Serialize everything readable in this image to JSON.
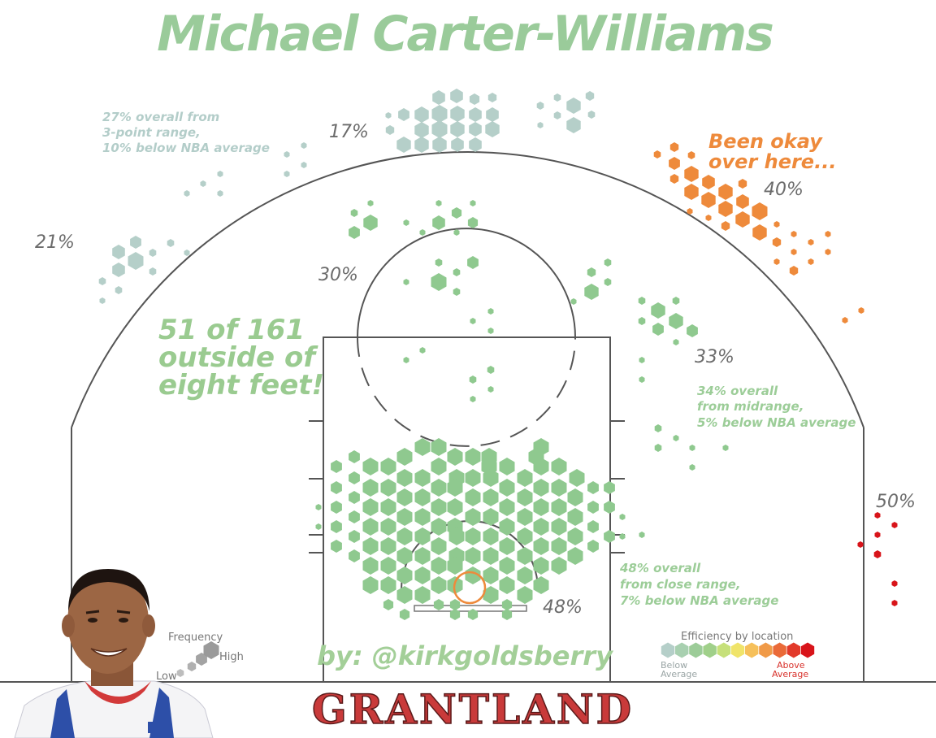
{
  "title": "Michael Carter-Williams",
  "byline": "by: @kirkgoldsberry",
  "logo": "GRANTLAND",
  "notes": {
    "three_pt_line1": "27% overall from",
    "three_pt_line2": "3-point range,",
    "three_pt_line3": "10% below NBA average",
    "midrange_line1": "34% overall",
    "midrange_line2": "from midrange,",
    "midrange_line3": "5% below NBA average",
    "close_line1": "48% overall",
    "close_line2": "from close range,",
    "close_line3": "7% below NBA average",
    "outside_line1": "51 of 161",
    "outside_line2": "outside of",
    "outside_line3": "eight feet!",
    "orange_line1": "Been okay",
    "orange_line2": "over here..."
  },
  "legend": {
    "frequency_title": "Frequency",
    "frequency_low": "Low",
    "frequency_high": "High",
    "efficiency_title": "Efficiency by location",
    "efficiency_below_1": "Below",
    "efficiency_below_2": "Average",
    "efficiency_above_1": "Above",
    "efficiency_above_2": "Average",
    "efficiency_colors": [
      "#b5cfc9",
      "#a8d0b0",
      "#9ccc98",
      "#a0d08a",
      "#c6e07a",
      "#f0e46a",
      "#f6c05a",
      "#f09a48",
      "#ea6a38",
      "#e23a2a",
      "#d8141a"
    ]
  },
  "colors": {
    "below_average": "#b5cfc9",
    "midrange_green": "#8fc98f",
    "orange": "#ee8a3b",
    "red": "#d8141a",
    "court_line": "#555555"
  },
  "chart_data": {
    "type": "heatmap",
    "title": "Michael Carter-Williams",
    "zones": [
      {
        "label": "17%",
        "efficiency": "below"
      },
      {
        "label": "21%",
        "efficiency": "below"
      },
      {
        "label": "30%",
        "efficiency": "below"
      },
      {
        "label": "40%",
        "efficiency": "above"
      },
      {
        "label": "33%",
        "efficiency": "below"
      },
      {
        "label": "50%",
        "efficiency": "above"
      },
      {
        "label": "48%",
        "efficiency": "below"
      }
    ]
  }
}
